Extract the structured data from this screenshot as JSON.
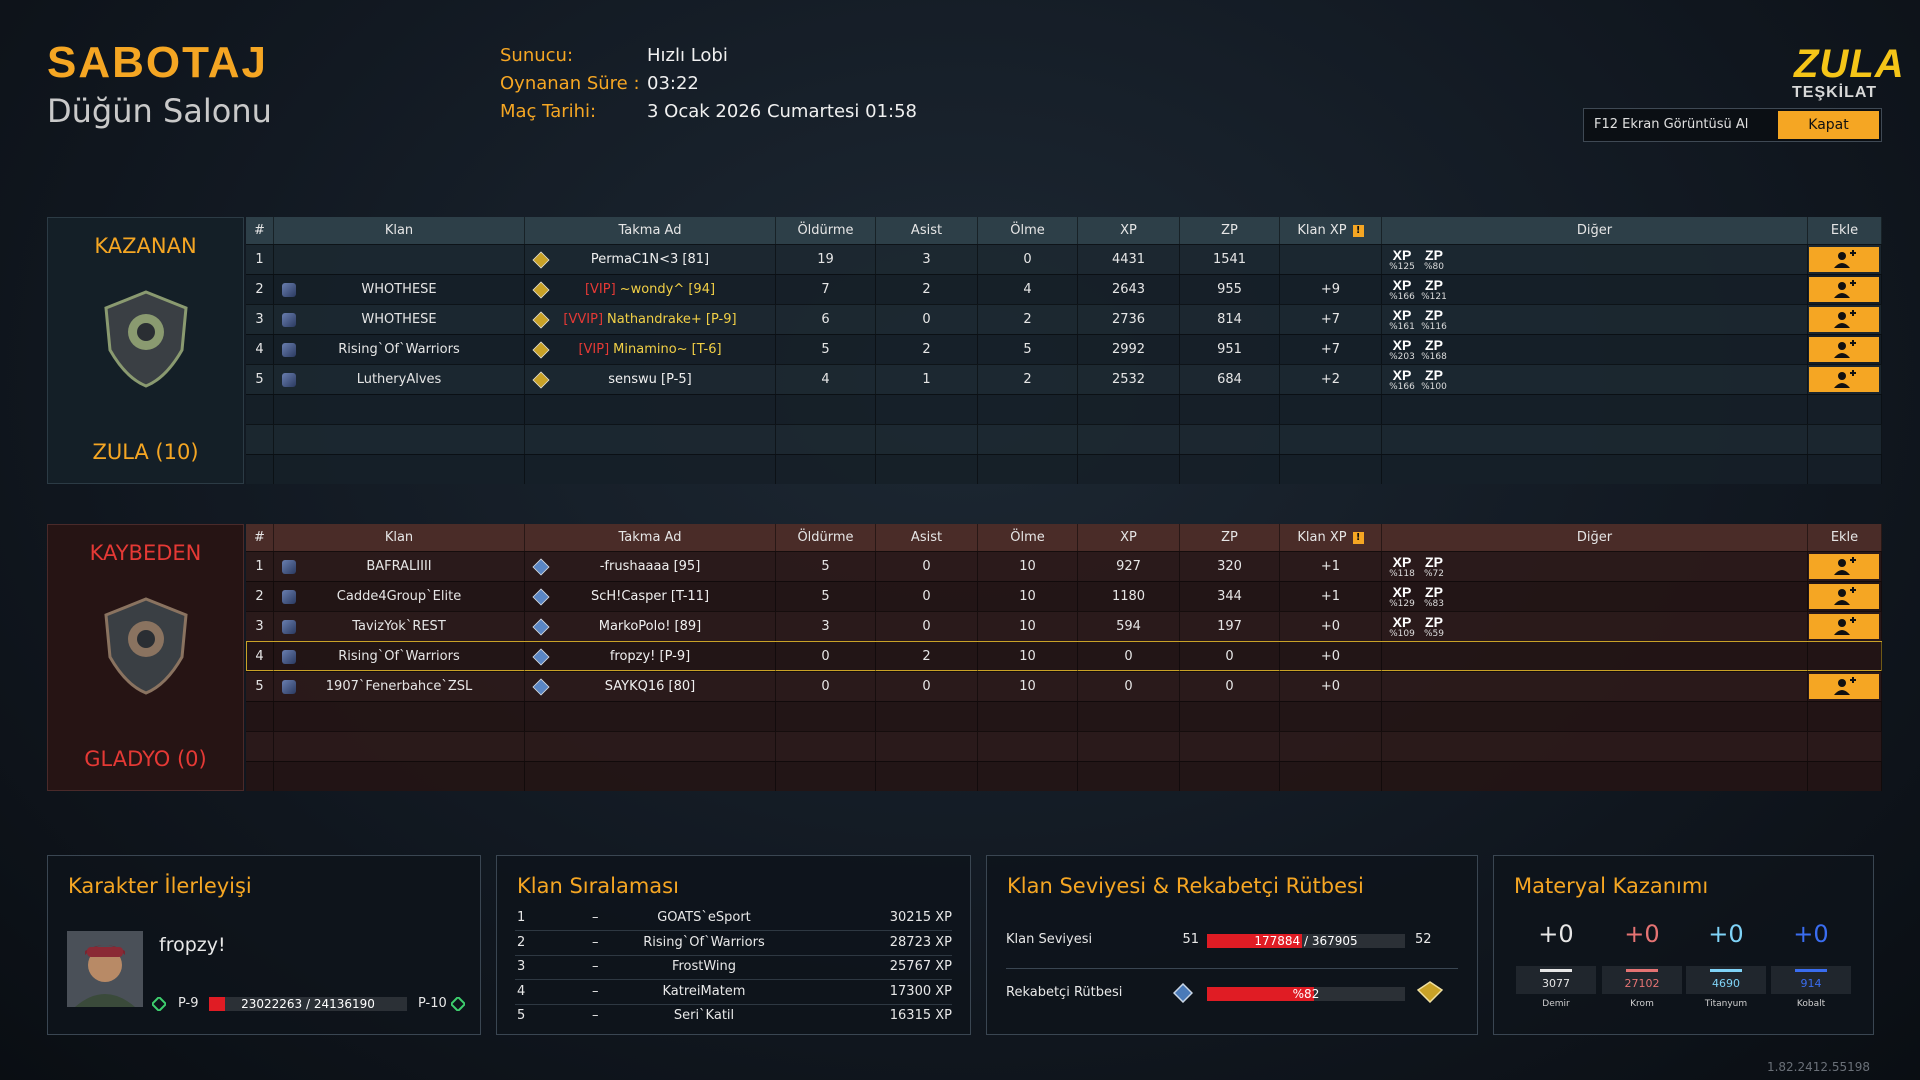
{
  "header": {
    "mode": "SABOTAJ",
    "map": "Düğün Salonu",
    "info": [
      {
        "label": "Sunucu:",
        "value": "Hızlı Lobi"
      },
      {
        "label": "Oynanan Süre :",
        "value": "03:22"
      },
      {
        "label": "Maç Tarihi:",
        "value": "3 Ocak 2026 Cumartesi 01:58"
      }
    ]
  },
  "logo": {
    "title": "ZULA",
    "subtitle": "TEŞKİLAT"
  },
  "actions": {
    "screenshot": "F12 Ekran Görüntüsü Al",
    "close": "Kapat"
  },
  "columns": [
    "#",
    "Klan",
    "Takma Ad",
    "Öldürme",
    "Asist",
    "Ölme",
    "XP",
    "ZP",
    "Klan XP",
    "Diğer",
    "Ekle"
  ],
  "teams": [
    {
      "result": "KAZANAN",
      "name": "ZULA (10)",
      "rows": [
        {
          "rank": 1,
          "nick": "PermaC1N<3 [81]",
          "kills": 19,
          "assists": 3,
          "deaths": 0,
          "xp": 4431,
          "zp": 1541,
          "bonuses": [
            {
              "label": "XP",
              "value": "%125"
            },
            {
              "label": "ZP",
              "value": "%80"
            }
          ]
        },
        {
          "rank": 2,
          "clan": "WHOTHESE",
          "vip": "[VIP]",
          "nick": "~wondy^ [94]",
          "kills": 7,
          "assists": 2,
          "deaths": 4,
          "xp": 2643,
          "zp": 955,
          "clan_xp": "+9",
          "bonuses": [
            {
              "label": "XP",
              "value": "%166"
            },
            {
              "label": "ZP",
              "value": "%121"
            }
          ]
        },
        {
          "rank": 3,
          "clan": "WHOTHESE",
          "vip": "[VVIP]",
          "nick": "Nathandrake+ [P-9]",
          "kills": 6,
          "assists": 0,
          "deaths": 2,
          "xp": 2736,
          "zp": 814,
          "clan_xp": "+7",
          "bonuses": [
            {
              "label": "XP",
              "value": "%161"
            },
            {
              "label": "ZP",
              "value": "%116"
            }
          ]
        },
        {
          "rank": 4,
          "clan": "Rising`Of`Warriors",
          "vip": "[VIP]",
          "nick": "Minamino~ [T-6]",
          "kills": 5,
          "assists": 2,
          "deaths": 5,
          "xp": 2992,
          "zp": 951,
          "clan_xp": "+7",
          "bonuses": [
            {
              "label": "XP",
              "value": "%203"
            },
            {
              "label": "ZP",
              "value": "%168"
            }
          ]
        },
        {
          "rank": 5,
          "clan": "LutheryAlves",
          "nick": "senswu [P-5]",
          "kills": 4,
          "assists": 1,
          "deaths": 2,
          "xp": 2532,
          "zp": 684,
          "clan_xp": "+2",
          "bonuses": [
            {
              "label": "XP",
              "value": "%166"
            },
            {
              "label": "ZP",
              "value": "%100"
            }
          ]
        }
      ]
    },
    {
      "result": "KAYBEDEN",
      "name": "GLADYO (0)",
      "rows": [
        {
          "rank": 1,
          "clan": "BAFRALIIII",
          "nick": "-frushaaaa [95]",
          "kills": 5,
          "assists": 0,
          "deaths": 10,
          "xp": 927,
          "zp": 320,
          "clan_xp": "+1",
          "bonuses": [
            {
              "label": "XP",
              "value": "%118"
            },
            {
              "label": "ZP",
              "value": "%72"
            }
          ]
        },
        {
          "rank": 2,
          "clan": "Cadde4Group`Elite",
          "nick": "ScH!Casper [T-11]",
          "kills": 5,
          "assists": 0,
          "deaths": 10,
          "xp": 1180,
          "zp": 344,
          "clan_xp": "+1",
          "bonuses": [
            {
              "label": "XP",
              "value": "%129"
            },
            {
              "label": "ZP",
              "value": "%83"
            }
          ]
        },
        {
          "rank": 3,
          "clan": "TavizYok`REST",
          "nick": "MarkoPolo! [89]",
          "kills": 3,
          "assists": 0,
          "deaths": 10,
          "xp": 594,
          "zp": 197,
          "clan_xp": "+0",
          "bonuses": [
            {
              "label": "XP",
              "value": "%109"
            },
            {
              "label": "ZP",
              "value": "%59"
            }
          ]
        },
        {
          "rank": 4,
          "clan": "Rising`Of`Warriors",
          "nick": "fropzy! [P-9]",
          "kills": 0,
          "assists": 2,
          "deaths": 10,
          "xp": 0,
          "zp": 0,
          "clan_xp": "+0",
          "bonuses": []
        },
        {
          "rank": 5,
          "clan": "1907`Fenerbahce`ZSL",
          "nick": "SAYKQ16 [80]",
          "kills": 0,
          "assists": 0,
          "deaths": 10,
          "xp": 0,
          "zp": 0,
          "clan_xp": "+0",
          "bonuses": []
        }
      ]
    }
  ],
  "character": {
    "title": "Karakter İlerleyişi",
    "name": "fropzy!",
    "rank": "P-9",
    "progress": "23022263 / 24136190",
    "next_rank": "P-10"
  },
  "clan_ranking": {
    "title": "Klan Sıralaması",
    "rows": [
      {
        "rank": 1,
        "trend": "–",
        "name": "GOATS`eSport",
        "xp": "30215 XP"
      },
      {
        "rank": 2,
        "trend": "–",
        "name": "Rising`Of`Warriors",
        "xp": "28723 XP"
      },
      {
        "rank": 3,
        "trend": "–",
        "name": "FrostWing",
        "xp": "25767 XP"
      },
      {
        "rank": 4,
        "trend": "–",
        "name": "KatreiMatem",
        "xp": "17300 XP"
      },
      {
        "rank": 5,
        "trend": "–",
        "name": "Seri`Katil",
        "xp": "16315 XP"
      }
    ]
  },
  "clan_level": {
    "title": "Klan Seviyesi & Rekabetçi Rütbesi",
    "level_label": "Klan Seviyesi",
    "level": 51,
    "level_progress": "177884 / 367905",
    "next_level": 52,
    "rank_label": "Rekabetçi Rütbesi",
    "rank_progress": "%82"
  },
  "materials": {
    "title": "Materyal Kazanımı",
    "items": [
      {
        "gain": "+0",
        "amount": 3077,
        "name": "Demir",
        "color": "#e6e6e6"
      },
      {
        "gain": "+0",
        "amount": 27102,
        "name": "Krom",
        "color": "#e57373"
      },
      {
        "gain": "+0",
        "amount": 4690,
        "name": "Titanyum",
        "color": "#7fd3f7"
      },
      {
        "gain": "+0",
        "amount": 914,
        "name": "Kobalt",
        "color": "#3a6df0"
      }
    ]
  },
  "version": "1.82.2412.55198"
}
